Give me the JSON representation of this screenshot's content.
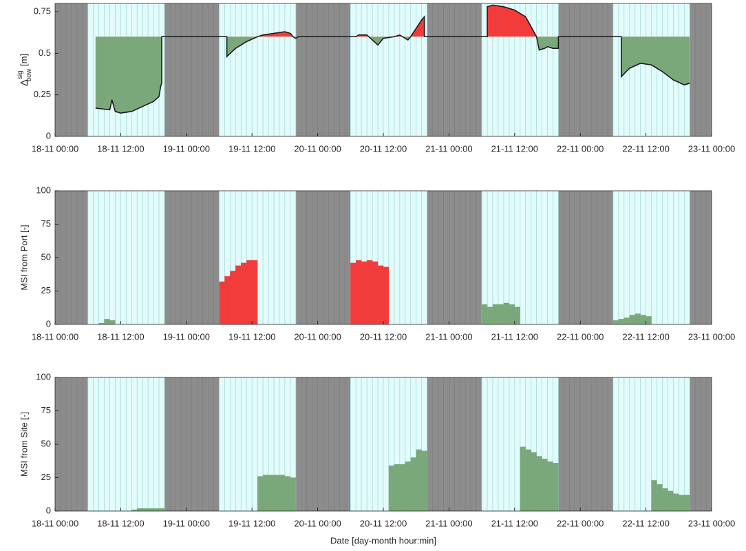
{
  "chart_data": [
    {
      "type": "line",
      "y_label": {
        "symbol": "Δ",
        "sup": "sig",
        "sub": "bow",
        "unit": "[m]"
      },
      "xlim": [
        0,
        120
      ],
      "xticks": [
        {
          "value": 0,
          "label": "18-11 00:00"
        },
        {
          "value": 12,
          "label": "18-11 12:00"
        },
        {
          "value": 24,
          "label": "19-11 00:00"
        },
        {
          "value": 36,
          "label": "19-11 12:00"
        },
        {
          "value": 48,
          "label": "20-11 00:00"
        },
        {
          "value": 60,
          "label": "20-11 12:00"
        },
        {
          "value": 72,
          "label": "21-11 00:00"
        },
        {
          "value": 84,
          "label": "21-11 12:00"
        },
        {
          "value": 96,
          "label": "22-11 00:00"
        },
        {
          "value": 108,
          "label": "22-11 12:00"
        },
        {
          "value": 120,
          "label": "23-11 00:00"
        }
      ],
      "ylim": [
        0,
        0.8
      ],
      "yticks": [
        0,
        0.25,
        0.5,
        0.75
      ],
      "day_periods": [
        [
          6,
          20
        ],
        [
          30,
          44
        ],
        [
          54,
          68
        ],
        [
          78,
          92
        ],
        [
          102,
          116
        ]
      ],
      "reference": 0.6,
      "color": "#1a1a1a",
      "below_color": "#7aa87a",
      "above_color": "#f23c3c",
      "x": [
        7.4,
        10,
        10.4,
        11,
        12,
        14,
        16,
        18,
        19,
        19.3,
        19.5,
        19.5,
        31.4,
        31.4,
        33,
        35,
        37,
        38,
        40,
        42,
        43,
        43.5,
        44,
        44.5,
        55,
        55.5,
        57,
        58,
        59,
        60,
        62,
        63,
        64.5,
        65,
        66,
        67,
        67.5,
        67.5,
        79,
        79,
        80,
        82,
        84,
        86,
        87,
        88,
        88.5,
        89.5,
        90,
        91,
        92,
        92,
        103.5,
        103.5,
        105,
        107,
        109,
        111,
        113,
        115,
        116
      ],
      "values": [
        0.17,
        0.16,
        0.22,
        0.15,
        0.14,
        0.15,
        0.18,
        0.21,
        0.24,
        0.3,
        0.32,
        0.6,
        0.6,
        0.48,
        0.53,
        0.57,
        0.6,
        0.61,
        0.62,
        0.63,
        0.62,
        0.6,
        0.59,
        0.6,
        0.6,
        0.61,
        0.61,
        0.58,
        0.55,
        0.59,
        0.6,
        0.61,
        0.58,
        0.6,
        0.65,
        0.7,
        0.72,
        0.6,
        0.6,
        0.78,
        0.79,
        0.78,
        0.76,
        0.72,
        0.66,
        0.6,
        0.52,
        0.53,
        0.54,
        0.53,
        0.53,
        0.6,
        0.6,
        0.36,
        0.41,
        0.44,
        0.43,
        0.39,
        0.34,
        0.31,
        0.32
      ]
    },
    {
      "type": "bar",
      "y_label": "MSI from Port [-]",
      "xlim": [
        0,
        120
      ],
      "xticks": [
        {
          "value": 0,
          "label": "18-11 00:00"
        },
        {
          "value": 12,
          "label": "18-11 12:00"
        },
        {
          "value": 24,
          "label": "19-11 00:00"
        },
        {
          "value": 36,
          "label": "19-11 12:00"
        },
        {
          "value": 48,
          "label": "20-11 00:00"
        },
        {
          "value": 60,
          "label": "20-11 12:00"
        },
        {
          "value": 72,
          "label": "21-11 00:00"
        },
        {
          "value": 84,
          "label": "21-11 12:00"
        },
        {
          "value": 96,
          "label": "22-11 00:00"
        },
        {
          "value": 108,
          "label": "22-11 12:00"
        },
        {
          "value": 120,
          "label": "23-11 00:00"
        }
      ],
      "ylim": [
        0,
        100
      ],
      "yticks": [
        0,
        25,
        50,
        75,
        100
      ],
      "day_periods": [
        [
          6,
          20
        ],
        [
          30,
          44
        ],
        [
          54,
          68
        ],
        [
          78,
          92
        ],
        [
          102,
          116
        ]
      ],
      "series": [
        {
          "color": "#7aa87a",
          "x": [
            8.5,
            9.5,
            10.5,
            11.5,
            78.5,
            79.5,
            80.5,
            81.5,
            82.5,
            83.5,
            84.5,
            102.5,
            103.5,
            104.5,
            105.5,
            106.5,
            107.5,
            108.5
          ],
          "values": [
            1,
            4,
            3,
            0,
            15,
            13,
            15,
            15,
            16,
            15,
            13,
            3,
            4,
            5,
            7,
            8,
            7,
            6
          ]
        },
        {
          "color": "#f23c3c",
          "x": [
            30.5,
            31.5,
            32.5,
            33.5,
            34.5,
            35.5,
            36.5,
            54.5,
            55.5,
            56.5,
            57.5,
            58.5,
            59.5,
            60.5
          ],
          "values": [
            32,
            36,
            40,
            44,
            46,
            48,
            48,
            46,
            48,
            47,
            48,
            47,
            44,
            43
          ]
        }
      ]
    },
    {
      "type": "bar",
      "y_label": "MSI from Site [-]",
      "x_label": "Date [day-month hour:min]",
      "xlim": [
        0,
        120
      ],
      "xticks": [
        {
          "value": 0,
          "label": "18-11 00:00"
        },
        {
          "value": 12,
          "label": "18-11 12:00"
        },
        {
          "value": 24,
          "label": "19-11 00:00"
        },
        {
          "value": 36,
          "label": "19-11 12:00"
        },
        {
          "value": 48,
          "label": "20-11 00:00"
        },
        {
          "value": 60,
          "label": "20-11 12:00"
        },
        {
          "value": 72,
          "label": "21-11 00:00"
        },
        {
          "value": 84,
          "label": "21-11 12:00"
        },
        {
          "value": 96,
          "label": "22-11 00:00"
        },
        {
          "value": 108,
          "label": "22-11 12:00"
        },
        {
          "value": 120,
          "label": "23-11 00:00"
        }
      ],
      "ylim": [
        0,
        100
      ],
      "yticks": [
        0,
        25,
        50,
        75,
        100
      ],
      "day_periods": [
        [
          6,
          20
        ],
        [
          30,
          44
        ],
        [
          54,
          68
        ],
        [
          78,
          92
        ],
        [
          102,
          116
        ]
      ],
      "series": [
        {
          "color": "#7aa87a",
          "x": [
            14.5,
            15.5,
            16.5,
            17.5,
            18.5,
            19.5,
            37.5,
            38.5,
            39.5,
            40.5,
            41.5,
            42.5,
            43.5,
            61.5,
            62.5,
            63.5,
            64.5,
            65.5,
            66.5,
            67.5,
            85.5,
            86.5,
            87.5,
            88.5,
            89.5,
            90.5,
            91.5,
            109.5,
            110.5,
            111.5,
            112.5,
            113.5,
            114.5,
            115.5
          ],
          "values": [
            1,
            2,
            2,
            2,
            2,
            2,
            26,
            27,
            27,
            27,
            27,
            26,
            25,
            34,
            35,
            35,
            37,
            40,
            46,
            45,
            48,
            46,
            44,
            41,
            39,
            37,
            36,
            23,
            20,
            17,
            15,
            13,
            12,
            12
          ]
        }
      ]
    }
  ]
}
